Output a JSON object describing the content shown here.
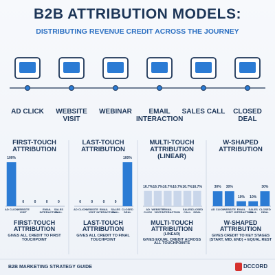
{
  "header": {
    "title": "B2B ATTRIBUTION MODELS:",
    "subtitle": "DISTRIBUTING REVENUE CREDIT ACROSS THE JOURNEY"
  },
  "journey": [
    "AD CLICK",
    "WEBSITE VISIT",
    "WEBINAR",
    "EMAIL INTERACTION",
    "SALES CALL",
    "CLOSED DEAL"
  ],
  "chart_data": [
    {
      "type": "bar",
      "title": "FIRST-TOUCH ATTRIBUTION",
      "categories": [
        "AD CLICK",
        "WEBSITE VISIT",
        null,
        "EMAIL INTERACTION",
        "SALES CALL"
      ],
      "values": [
        100,
        0,
        0,
        0,
        0
      ],
      "value_labels": [
        "100%",
        "0",
        "0",
        "0",
        "0"
      ],
      "ylim": [
        0,
        100
      ],
      "color": "#2b7bd4",
      "caption": "FIRST-TOUCH ATTRIBUTION",
      "description": "GIVES ALL CREDIT TO FIRST TOUCHPOINT"
    },
    {
      "type": "bar",
      "title": "LAST-TOUCH ATTRIBUTION",
      "categories": [
        "AD CLICK",
        "WEBSITE VISIT",
        "EMAIL INTERACTION",
        "SALES CALL",
        "CLOSED DEAL"
      ],
      "values": [
        0,
        0,
        0,
        0,
        100
      ],
      "value_labels": [
        "0",
        "0",
        "0",
        "0",
        "100%"
      ],
      "ylim": [
        0,
        100
      ],
      "color": "#2b7bd4",
      "caption": "LAST-TOUCH ATTRIBUTION",
      "description": "GIVES ALL CREDIT TO FINAL TOUCHPOINT"
    },
    {
      "type": "bar",
      "title": "MULTI-TOUCH ATTRIBUTION (LINEAR)",
      "categories": [
        "AD CLICK",
        "WEBSITE VISIT",
        "EMAIL INTERACTION",
        null,
        "SALES CALL",
        "CLOSED DEAL"
      ],
      "values": [
        16.7,
        16.7,
        16.7,
        16.7,
        16.7,
        16.7
      ],
      "value_labels": [
        "16.7%",
        "16.7%",
        "16.7%",
        "16.7%",
        "16.7%",
        "16.7%"
      ],
      "ylim": [
        0,
        48
      ],
      "color": "#c9d6ea",
      "caption": "MULTI-TOUCH ATTRIBUTION",
      "note": "(LINEAR)",
      "description": "GIVES EQUAL CREDIT ACROSS ALL TOUCHPOINTS"
    },
    {
      "type": "bar",
      "title": "W-SHAPED ATTRIBUTION",
      "categories": [
        "AD CLICK",
        "WEBSITE VISIT",
        "EMAIL INTERACTION",
        "SALES CALL",
        "CLOSED DEAL"
      ],
      "values": [
        30,
        30,
        10,
        10,
        30
      ],
      "value_labels": [
        "30%",
        "30%",
        "10%",
        "10%",
        "30%"
      ],
      "ylim": [
        0,
        88
      ],
      "color": "#2b7bd4",
      "caption": "W-SHAPED ATTRIBUTION",
      "description": "GIVES CREDIT TO KEY STAGES (START, MID, END) + EQUAL REST"
    }
  ],
  "footer": {
    "text": "B2B MARKETING STRATEGY GUIDE",
    "logo": "DCCORD"
  }
}
